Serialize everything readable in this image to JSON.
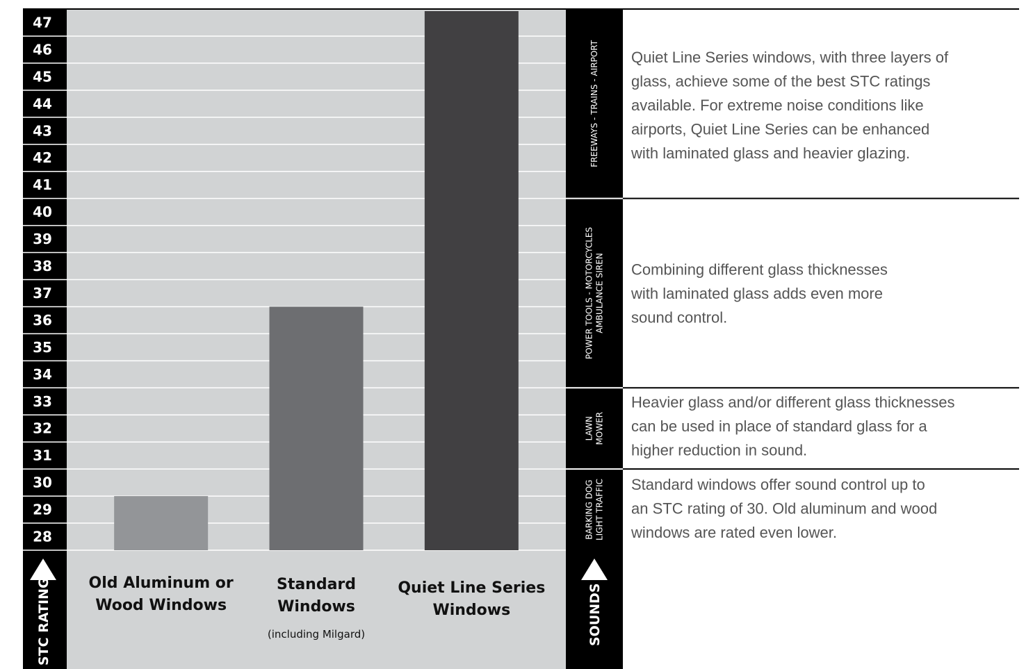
{
  "chart_data": {
    "type": "bar",
    "ylabel": "STC RATING",
    "ylim": [
      27.5,
      47.5
    ],
    "yticks": [
      47,
      46,
      45,
      44,
      43,
      42,
      41,
      40,
      39,
      38,
      37,
      36,
      35,
      34,
      33,
      32,
      31,
      30,
      29,
      28
    ],
    "grid": true,
    "categories": [
      {
        "lines": [
          "Old Aluminum or",
          "Wood Windows"
        ],
        "sub": ""
      },
      {
        "lines": [
          "Standard",
          "Windows"
        ],
        "sub": "(including Milgard)"
      },
      {
        "lines": [
          "Quiet Line Series",
          "Windows"
        ],
        "sub": ""
      }
    ],
    "values": [
      29.5,
      36.5,
      47.5
    ],
    "colors": [
      "#939598",
      "#6d6e71",
      "#414042"
    ],
    "sounds_label": "SOUNDS",
    "bands": [
      {
        "from": 40.5,
        "to": 47.5,
        "label_lines": [
          "FREEWAYS - TRAINS - AIRPORT"
        ],
        "desc_lines": [
          "Quiet Line Series windows, with three layers of",
          "glass, achieve some of the best STC ratings",
          "available. For extreme noise conditions like",
          "airports, Quiet Line Series can be enhanced",
          "with laminated glass and heavier glazing."
        ]
      },
      {
        "from": 33.5,
        "to": 40.5,
        "label_lines": [
          "POWER TOOLS - MOTORCYCLES",
          "AMBULANCE  SIREN"
        ],
        "desc_lines": [
          "Combining different glass thicknesses",
          "with laminated glass adds even more",
          "sound control."
        ]
      },
      {
        "from": 30.5,
        "to": 33.5,
        "label_lines": [
          "LAWN",
          "MOWER"
        ],
        "desc_lines": [
          "Heavier glass and/or different glass thicknesses",
          "can be used in place of standard glass for a",
          "higher reduction in sound."
        ]
      },
      {
        "from": 27.5,
        "to": 30.5,
        "label_lines": [
          "BARKING DOG",
          "LIGHT TRAFFIC"
        ],
        "desc_lines": [
          "Standard windows offer sound control up to",
          "an STC rating of 30.  Old aluminum and wood",
          "windows are rated even lower."
        ]
      }
    ]
  }
}
